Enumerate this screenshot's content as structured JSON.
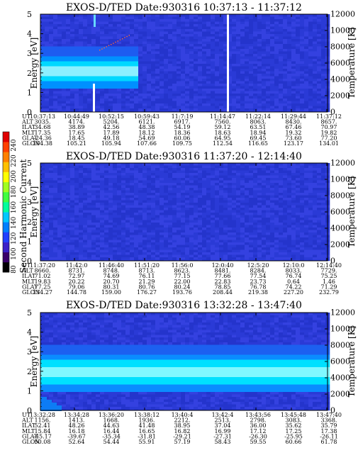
{
  "chart_data": {
    "type": "heatmap",
    "colorbar": {
      "label": "Second Harmonic Current",
      "ticks": [
        80,
        100,
        120,
        140,
        160,
        180,
        200,
        220,
        240
      ],
      "colors": [
        "#000000",
        "#3a006a",
        "#3a20c8",
        "#2040ff",
        "#0080ff",
        "#00c8ff",
        "#00ff9c",
        "#40ff40",
        "#a0ff20",
        "#ffff00",
        "#ffc000",
        "#ff8000",
        "#ff4000",
        "#e00000"
      ]
    },
    "panels": [
      {
        "title": "EXOS-D/TED   Date:930316   10:37:13 - 11:37:12",
        "ylabel": "Energy [eV]",
        "y2label": "Temperature [K]",
        "ylim": [
          0,
          5
        ],
        "yticks": [
          "0",
          "1",
          "2",
          "3",
          "4",
          "5"
        ],
        "y2lim": [
          0,
          12000
        ],
        "y2ticks": [
          "0",
          "2000",
          "4000",
          "6000",
          "8000",
          "10000",
          "12000"
        ],
        "table": {
          "labels": [
            "UT",
            "ALT",
            "ILAT",
            "MLT",
            "GLAT",
            "GLON"
          ],
          "columns": [
            [
              "10:37:13",
              "3035.",
              "34.68",
              "17.35",
              "-24.36",
              "104.38"
            ],
            [
              "10:44:49",
              "4174.",
              "38.89",
              "17.65",
              "18.45",
              "105.21"
            ],
            [
              "10:52:15",
              "5204.",
              "42.56",
              "17.89",
              "49.18",
              "105.94"
            ],
            [
              "10:59:43",
              "6121.",
              "48.38",
              "18.12",
              "54.69",
              "107.66"
            ],
            [
              "11:7:19",
              "6917.",
              "54.19",
              "18.36",
              "60.06",
              "109.75"
            ],
            [
              "11:14:47",
              "7560.",
              "59.12",
              "18.63",
              "64.95",
              "112.54"
            ],
            [
              "11:22:14",
              "8063.",
              "63.51",
              "18.94",
              "69.45",
              "116.65"
            ],
            [
              "11:29:44",
              "8430.",
              "67.46",
              "19.32",
              "73.60",
              "123.17"
            ],
            [
              "11:37:12",
              "8657.",
              "70.97",
              "19.82",
              "77.20",
              "134.01"
            ]
          ]
        }
      },
      {
        "title": "EXOS-D/TED   Date:930316   11:37:20 - 12:14:40",
        "ylabel": "Energy [eV]",
        "y2label": "Temperature [K]",
        "ylim": [
          0,
          5
        ],
        "yticks": [
          "0",
          "1",
          "2",
          "3",
          "4",
          "5"
        ],
        "y2lim": [
          0,
          12000
        ],
        "y2ticks": [
          "0",
          "2000",
          "4000",
          "6000",
          "8000",
          "10000",
          "12000"
        ],
        "table": {
          "labels": [
            "UT",
            "ALT",
            "ILAT",
            "MLT",
            "GLAT",
            "GLON"
          ],
          "columns": [
            [
              "11:37:20",
              "8660.",
              "71.02",
              "19.83",
              "77.25",
              "134.27"
            ],
            [
              "11:42:0",
              "8731.",
              "72.97",
              "20.22",
              "79.06",
              "144.78"
            ],
            [
              "11:46:40",
              "8748.",
              "74.69",
              "20.70",
              "80.31",
              "159.00"
            ],
            [
              "11:51:20",
              "8713.",
              "76.11",
              "21.29",
              "80.76",
              "176.27"
            ],
            [
              "11:56:0",
              "8623.",
              "77.15",
              "22.00",
              "80.24",
              "193.76"
            ],
            [
              "12:0:40",
              "8481.",
              "77.66",
              "22.83",
              "78.85",
              "208.44"
            ],
            [
              "12:5:20",
              "8284.",
              "77.54",
              "23.73",
              "76.78",
              "219.38"
            ],
            [
              "12:10:0",
              "8033.",
              "76.74",
              "0.64",
              "74.22",
              "227.20"
            ],
            [
              "12:14:40",
              "7729.",
              "75.25",
              "1.46",
              "71.29",
              "232.79"
            ]
          ]
        }
      },
      {
        "title": "EXOS-D/TED   Date:930316   13:32:28 - 13:47:40",
        "ylabel": "Energy [eV]",
        "y2label": "Temperature [K]",
        "ylim": [
          0,
          5
        ],
        "yticks": [
          "0",
          "1",
          "2",
          "3",
          "4",
          "5"
        ],
        "y2lim": [
          0,
          12000
        ],
        "y2ticks": [
          "0",
          "2000",
          "4000",
          "6000",
          "8000",
          "10000",
          "12000"
        ],
        "table": {
          "labels": [
            "UT",
            "ALT",
            "ILAT",
            "MLT",
            "GLAT",
            "GLON"
          ],
          "columns": [
            [
              "13:32:28",
              "1156.",
              "52.41",
              "15.84",
              "-45.17",
              "50.08"
            ],
            [
              "13:34:28",
              "1413.",
              "48.26",
              "16.18",
              "-39.67",
              "52.64"
            ],
            [
              "13:36:20",
              "1668.",
              "44.63",
              "16.44",
              "-35.34",
              "54.44"
            ],
            [
              "13:38:12",
              "1936.",
              "41.48",
              "16.65",
              "-31.81",
              "55.91"
            ],
            [
              "13:40:4",
              "2212.",
              "38.95",
              "16.82",
              "-29.21",
              "57.19"
            ],
            [
              "13:42:4",
              "2513.",
              "37.04",
              "16.99",
              "-27.31",
              "58.43"
            ],
            [
              "13:43:56",
              "2798.",
              "36.00",
              "17.12",
              "-26.30",
              "59.55"
            ],
            [
              "13:45:48",
              "3083.",
              "35.62",
              "17.25",
              "-25.95",
              "60.66"
            ],
            [
              "13:47:40",
              "3368.",
              "35.79",
              "17.38",
              "-26.11",
              "61.78"
            ]
          ]
        }
      }
    ]
  }
}
